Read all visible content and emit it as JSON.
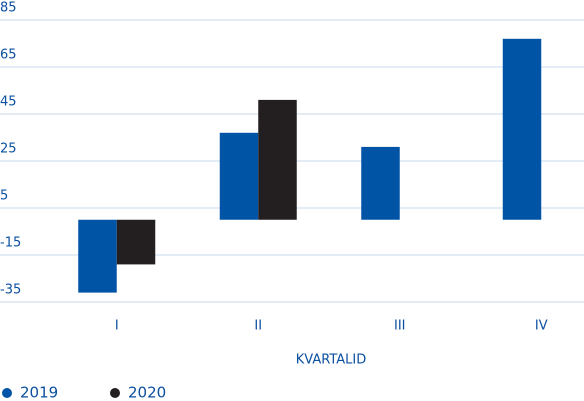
{
  "chart_data": {
    "type": "bar",
    "x_label": "KVARTALID",
    "categories": [
      "I",
      "II",
      "III",
      "IV"
    ],
    "series": [
      {
        "name": "2019",
        "color": "#0054a6",
        "values": [
          -31,
          37,
          31,
          77
        ]
      },
      {
        "name": "2020",
        "color": "#231f20",
        "values": [
          -19,
          51,
          null,
          null
        ]
      }
    ],
    "ylim": [
      -35,
      85
    ],
    "yticks": [
      85,
      65,
      45,
      25,
      5,
      -15,
      -35
    ],
    "grid": true
  }
}
